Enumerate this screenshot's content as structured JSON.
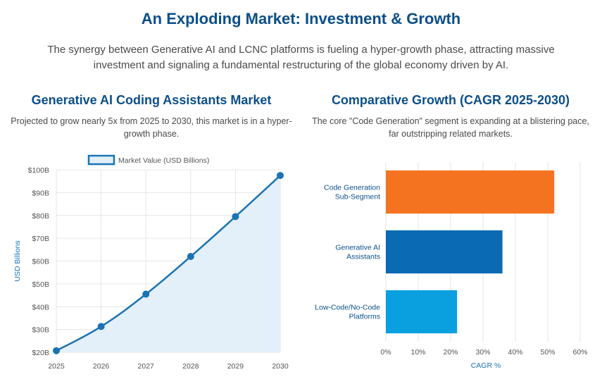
{
  "header": {
    "title": "An Exploding Market: Investment & Growth",
    "subtitle": "The synergy between Generative AI and LCNC platforms is fueling a hyper-growth phase, attracting massive investment and signaling a fundamental restructuring of the global economy driven by AI."
  },
  "left_panel": {
    "title": "Generative AI Coding Assistants Market",
    "description": "Projected to grow nearly 5x from 2025 to 2030, this market is in a hyper-growth phase."
  },
  "right_panel": {
    "title": "Comparative Growth (CAGR 2025-2030)",
    "description": "The core \"Code Generation\" segment is expanding at a blistering pace, far outstripping related markets."
  },
  "colors": {
    "line": "#1a73b5",
    "area": "#e3eff9",
    "grid": "#e6e6e6",
    "axis_text": "#555555",
    "axis_title": "#1a73b5",
    "bar_code_generation": "#f47320",
    "bar_generative_ai": "#0a6ab3",
    "bar_lcnc": "#0aa0e0"
  },
  "chart_data": [
    {
      "type": "area",
      "legend": "Market Value (USD Billions)",
      "legend_position": "top",
      "ylabel": "USD Billions",
      "xlabel": "",
      "grid": true,
      "x": [
        "2025",
        "2026",
        "2027",
        "2028",
        "2029",
        "2030"
      ],
      "series": [
        {
          "name": "Market Value (USD Billions)",
          "values": [
            20.7,
            31.3,
            45.5,
            62.0,
            79.5,
            97.5
          ]
        }
      ],
      "ylim": [
        20,
        100
      ],
      "yticks": [
        "$20B",
        "$30B",
        "$40B",
        "$50B",
        "$60B",
        "$70B",
        "$80B",
        "$90B",
        "$100B"
      ]
    },
    {
      "type": "bar",
      "orientation": "horizontal",
      "categories": [
        [
          "Code Generation",
          "Sub-Segment"
        ],
        [
          "Generative AI",
          "Assistants"
        ],
        [
          "Low-Code/No-Code",
          "Platforms"
        ]
      ],
      "values": [
        52,
        36,
        22
      ],
      "xlabel": "CAGR %",
      "xlim": [
        0,
        60
      ],
      "xticks": [
        "0%",
        "10%",
        "20%",
        "30%",
        "40%",
        "50%",
        "60%"
      ],
      "grid": true
    }
  ]
}
